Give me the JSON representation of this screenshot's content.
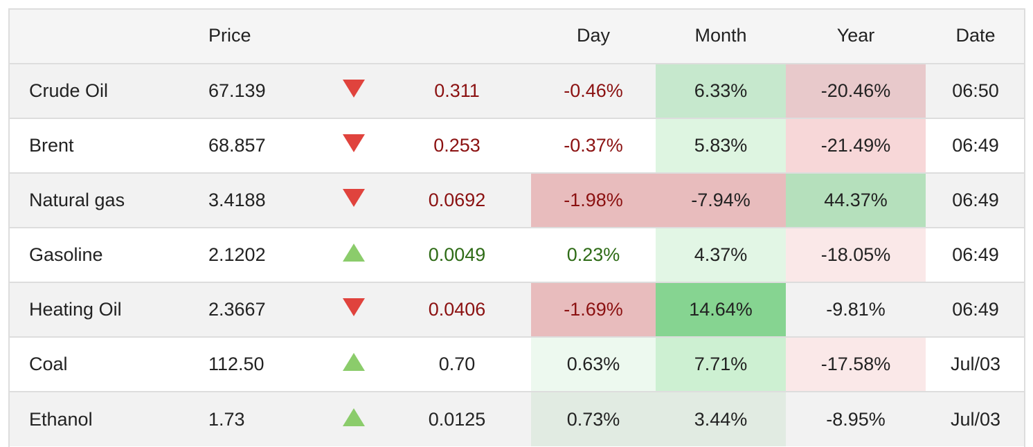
{
  "headers": {
    "name": "",
    "price": "Price",
    "arrow": "",
    "change": "",
    "day": "Day",
    "month": "Month",
    "year": "Year",
    "date": "Date"
  },
  "rows": [
    {
      "name": "Crude Oil",
      "price": "67.139",
      "direction": "down",
      "change": "0.311",
      "day": "-0.46%",
      "month": "6.33%",
      "year": "-20.46%",
      "date": "06:50",
      "day_bg": "",
      "month_bg": "#c6e8cd",
      "year_bg": "#e8c9cb",
      "change_color": "neg",
      "day_color": "neg"
    },
    {
      "name": "Brent",
      "price": "68.857",
      "direction": "down",
      "change": "0.253",
      "day": "-0.37%",
      "month": "5.83%",
      "year": "-21.49%",
      "date": "06:49",
      "day_bg": "",
      "month_bg": "#def5e1",
      "year_bg": "#f7d7d8",
      "change_color": "neg",
      "day_color": "neg"
    },
    {
      "name": "Natural gas",
      "price": "3.4188",
      "direction": "down",
      "change": "0.0692",
      "day": "-1.98%",
      "month": "-7.94%",
      "year": "44.37%",
      "date": "06:49",
      "day_bg": "#e8bcbd",
      "month_bg": "#e8bcbd",
      "year_bg": "#b5e0bc",
      "change_color": "neg",
      "day_color": "neg"
    },
    {
      "name": "Gasoline",
      "price": "2.1202",
      "direction": "up",
      "change": "0.0049",
      "day": "0.23%",
      "month": "4.37%",
      "year": "-18.05%",
      "date": "06:49",
      "day_bg": "",
      "month_bg": "#e2f6e5",
      "year_bg": "#fae8e8",
      "change_color": "pos",
      "day_color": "pos"
    },
    {
      "name": "Heating Oil",
      "price": "2.3667",
      "direction": "down",
      "change": "0.0406",
      "day": "-1.69%",
      "month": "14.64%",
      "year": "-9.81%",
      "date": "06:49",
      "day_bg": "#e8bcbd",
      "month_bg": "#86d491",
      "year_bg": "",
      "change_color": "neg",
      "day_color": "neg"
    },
    {
      "name": "Coal",
      "price": "112.50",
      "direction": "up",
      "change": "0.70",
      "day": "0.63%",
      "month": "7.71%",
      "year": "-17.58%",
      "date": "Jul/03",
      "day_bg": "#edf9ef",
      "month_bg": "#cdf0d2",
      "year_bg": "#fae8e8",
      "change_color": "",
      "day_color": ""
    },
    {
      "name": "Ethanol",
      "price": "1.73",
      "direction": "up",
      "change": "0.0125",
      "day": "0.73%",
      "month": "3.44%",
      "year": "-8.95%",
      "date": "Jul/03",
      "day_bg": "#e1ebe2",
      "month_bg": "#e1ebe2",
      "year_bg": "",
      "change_color": "",
      "day_color": ""
    }
  ]
}
